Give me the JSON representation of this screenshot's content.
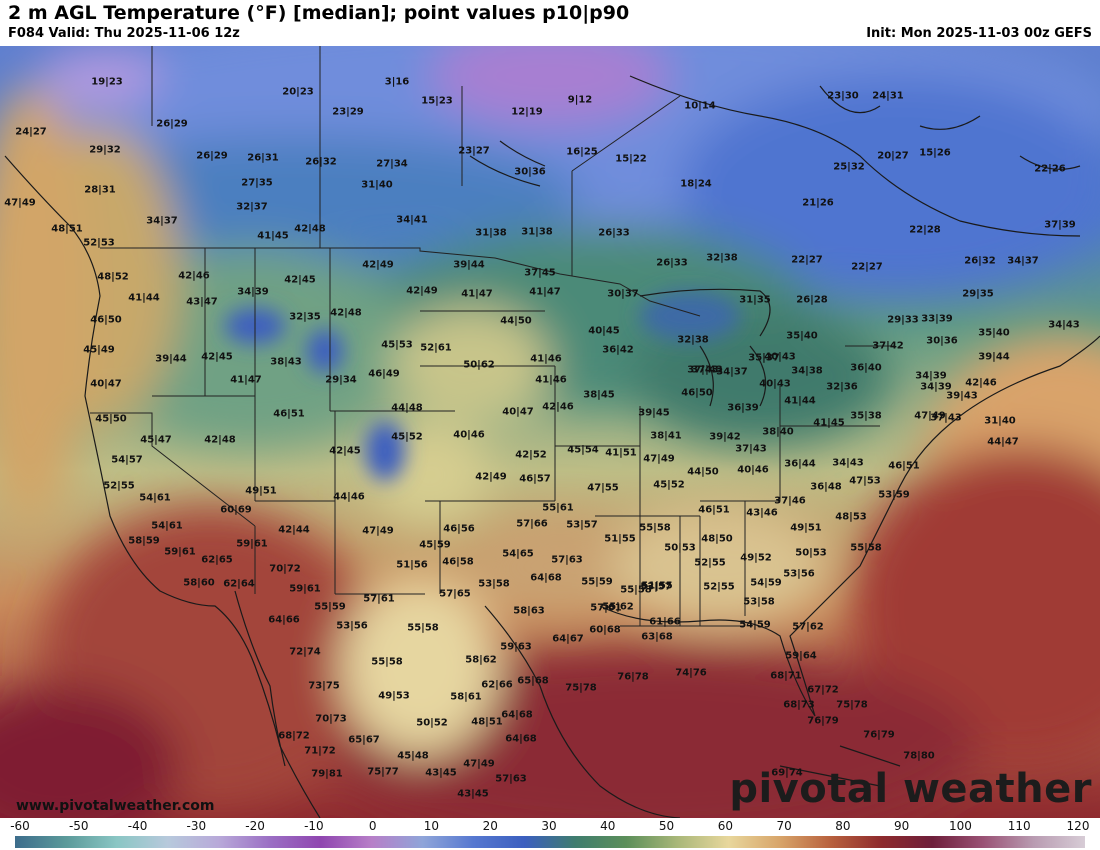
{
  "header": {
    "title": "2 m AGL Temperature (°F) [median]; point values p10|p90",
    "valid": "F084 Valid: Thu 2025-11-06 12z",
    "init": "Init: Mon 2025-11-03 00z GEFS"
  },
  "branding": {
    "website": "www.pivotalweather.com",
    "logo_text": "pivotal weather"
  },
  "colorbar": {
    "ticks": [
      "-60",
      "-50",
      "-40",
      "-30",
      "-20",
      "-10",
      "0",
      "10",
      "20",
      "30",
      "40",
      "50",
      "60",
      "70",
      "80",
      "90",
      "100",
      "110",
      "120"
    ],
    "stops": [
      "#3d6d8c",
      "#5b9a9a",
      "#8ac6c4",
      "#b7c9dc",
      "#b8a9d9",
      "#9b6fc4",
      "#8f46b0",
      "#b77fc8",
      "#8fa5d9",
      "#5678d0",
      "#3b5fbf",
      "#3f7d6e",
      "#5c8f5a",
      "#a9b779",
      "#e8d79c",
      "#d8a56a",
      "#b8613e",
      "#8e2b2d",
      "#6e1f3b",
      "#9a5275",
      "#b99cb2",
      "#d7ccd6"
    ]
  },
  "point_values": [
    {
      "label": "19|23"
    },
    {
      "label": "20|23"
    },
    {
      "label": "3|16"
    },
    {
      "label": "15|23"
    },
    {
      "label": "9|12"
    },
    {
      "label": "10|14"
    },
    {
      "label": "23|30"
    },
    {
      "label": "24|31"
    },
    {
      "label": "24|27"
    },
    {
      "label": "26|29"
    },
    {
      "label": "23|29"
    },
    {
      "label": "12|19"
    },
    {
      "label": "29|32"
    },
    {
      "label": "26|29"
    },
    {
      "label": "26|31"
    },
    {
      "label": "26|32"
    },
    {
      "label": "27|34"
    },
    {
      "label": "23|27"
    },
    {
      "label": "16|25"
    },
    {
      "label": "15|22"
    },
    {
      "label": "25|32"
    },
    {
      "label": "20|27"
    },
    {
      "label": "15|26"
    },
    {
      "label": "22|26"
    },
    {
      "label": "28|31"
    },
    {
      "label": "27|35"
    },
    {
      "label": "31|40"
    },
    {
      "label": "30|36"
    },
    {
      "label": "18|24"
    },
    {
      "label": "47|49"
    },
    {
      "label": "32|37"
    },
    {
      "label": "21|26"
    },
    {
      "label": "34|37"
    },
    {
      "label": "34|41"
    },
    {
      "label": "48|51"
    },
    {
      "label": "41|45"
    },
    {
      "label": "42|48"
    },
    {
      "label": "31|38"
    },
    {
      "label": "31|38"
    },
    {
      "label": "26|33"
    },
    {
      "label": "22|28"
    },
    {
      "label": "37|39"
    },
    {
      "label": "52|53"
    },
    {
      "label": "42|46"
    },
    {
      "label": "42|49"
    },
    {
      "label": "39|44"
    },
    {
      "label": "26|33"
    },
    {
      "label": "32|38"
    },
    {
      "label": "22|27"
    },
    {
      "label": "22|27"
    },
    {
      "label": "26|32"
    },
    {
      "label": "34|37"
    },
    {
      "label": "48|52"
    },
    {
      "label": "34|39"
    },
    {
      "label": "42|45"
    },
    {
      "label": "37|45"
    },
    {
      "label": "41|44"
    },
    {
      "label": "43|47"
    },
    {
      "label": "42|49"
    },
    {
      "label": "41|47"
    },
    {
      "label": "41|47"
    },
    {
      "label": "30|37"
    },
    {
      "label": "31|35"
    },
    {
      "label": "26|28"
    },
    {
      "label": "29|35"
    },
    {
      "label": "46|50"
    },
    {
      "label": "32|35"
    },
    {
      "label": "42|48"
    },
    {
      "label": "44|50"
    },
    {
      "label": "29|33"
    },
    {
      "label": "33|39"
    },
    {
      "label": "34|43"
    },
    {
      "label": "45|49"
    },
    {
      "label": "45|53"
    },
    {
      "label": "52|61"
    },
    {
      "label": "40|45"
    },
    {
      "label": "32|38"
    },
    {
      "label": "35|40"
    },
    {
      "label": "30|36"
    },
    {
      "label": "35|40"
    },
    {
      "label": "39|44"
    },
    {
      "label": "42|45"
    },
    {
      "label": "38|43"
    },
    {
      "label": "50|62"
    },
    {
      "label": "41|46"
    },
    {
      "label": "36|42"
    },
    {
      "label": "35|37"
    },
    {
      "label": "40|43"
    },
    {
      "label": "37|42"
    },
    {
      "label": "39|44"
    },
    {
      "label": "40|47"
    },
    {
      "label": "41|47"
    },
    {
      "label": "29|34"
    },
    {
      "label": "46|49"
    },
    {
      "label": "41|46"
    },
    {
      "label": "37|43"
    },
    {
      "label": "34|37"
    },
    {
      "label": "34|38"
    },
    {
      "label": "36|40"
    },
    {
      "label": "34|39"
    },
    {
      "label": "42|46"
    },
    {
      "label": "34|39"
    },
    {
      "label": "40|43"
    },
    {
      "label": "32|36"
    },
    {
      "label": "37|43"
    },
    {
      "label": "38|45"
    },
    {
      "label": "46|50"
    },
    {
      "label": "39|43"
    },
    {
      "label": "47|49"
    },
    {
      "label": "45|50"
    },
    {
      "label": "46|51"
    },
    {
      "label": "44|48"
    },
    {
      "label": "40|47"
    },
    {
      "label": "42|46"
    },
    {
      "label": "39|45"
    },
    {
      "label": "36|39"
    },
    {
      "label": "41|44"
    },
    {
      "label": "35|38"
    },
    {
      "label": "31|40"
    },
    {
      "label": "37|43"
    },
    {
      "label": "45|47"
    },
    {
      "label": "42|48"
    },
    {
      "label": "40|46"
    },
    {
      "label": "38|41"
    },
    {
      "label": "39|42"
    },
    {
      "label": "38|40"
    },
    {
      "label": "41|45"
    },
    {
      "label": "44|47"
    },
    {
      "label": "42|45"
    },
    {
      "label": "45|52"
    },
    {
      "label": "42|52"
    },
    {
      "label": "45|54"
    },
    {
      "label": "41|51"
    },
    {
      "label": "37|43"
    },
    {
      "label": "54|57"
    },
    {
      "label": "47|49"
    },
    {
      "label": "40|46"
    },
    {
      "label": "36|44"
    },
    {
      "label": "34|43"
    },
    {
      "label": "46|51"
    },
    {
      "label": "52|55"
    },
    {
      "label": "42|49"
    },
    {
      "label": "46|57"
    },
    {
      "label": "44|50"
    },
    {
      "label": "47|53"
    },
    {
      "label": "49|51"
    },
    {
      "label": "54|61"
    },
    {
      "label": "44|46"
    },
    {
      "label": "47|55"
    },
    {
      "label": "45|52"
    },
    {
      "label": "36|48"
    },
    {
      "label": "53|59"
    },
    {
      "label": "37|46"
    },
    {
      "label": "60|69"
    },
    {
      "label": "55|61"
    },
    {
      "label": "46|51"
    },
    {
      "label": "43|46"
    },
    {
      "label": "48|53"
    },
    {
      "label": "54|61"
    },
    {
      "label": "42|44"
    },
    {
      "label": "47|49"
    },
    {
      "label": "46|56"
    },
    {
      "label": "57|66"
    },
    {
      "label": "53|57"
    },
    {
      "label": "55|58"
    },
    {
      "label": "49|51"
    },
    {
      "label": "58|59"
    },
    {
      "label": "59|61"
    },
    {
      "label": "45|59"
    },
    {
      "label": "51|55"
    },
    {
      "label": "48|50"
    },
    {
      "label": "55|58"
    },
    {
      "label": "59|61"
    },
    {
      "label": "62|65"
    },
    {
      "label": "70|72"
    },
    {
      "label": "51|56"
    },
    {
      "label": "46|58"
    },
    {
      "label": "54|65"
    },
    {
      "label": "57|63"
    },
    {
      "label": "50|53"
    },
    {
      "label": "52|55"
    },
    {
      "label": "49|52"
    },
    {
      "label": "50|53"
    },
    {
      "label": "58|60"
    },
    {
      "label": "62|64"
    },
    {
      "label": "59|61"
    },
    {
      "label": "64|68"
    },
    {
      "label": "55|59"
    },
    {
      "label": "55|58"
    },
    {
      "label": "53|57"
    },
    {
      "label": "53|56"
    },
    {
      "label": "55|59"
    },
    {
      "label": "57|61"
    },
    {
      "label": "57|65"
    },
    {
      "label": "53|58"
    },
    {
      "label": "51|55"
    },
    {
      "label": "52|55"
    },
    {
      "label": "54|59"
    },
    {
      "label": "64|66"
    },
    {
      "label": "57|61"
    },
    {
      "label": "55|62"
    },
    {
      "label": "53|58"
    },
    {
      "label": "53|56"
    },
    {
      "label": "55|58"
    },
    {
      "label": "58|63"
    },
    {
      "label": "61|66"
    },
    {
      "label": "54|59"
    },
    {
      "label": "57|62"
    },
    {
      "label": "72|74"
    },
    {
      "label": "64|67"
    },
    {
      "label": "60|68"
    },
    {
      "label": "63|68"
    },
    {
      "label": "55|58"
    },
    {
      "label": "59|63"
    },
    {
      "label": "58|62"
    },
    {
      "label": "59|64"
    },
    {
      "label": "73|75"
    },
    {
      "label": "62|66"
    },
    {
      "label": "65|68"
    },
    {
      "label": "75|78"
    },
    {
      "label": "76|78"
    },
    {
      "label": "74|76"
    },
    {
      "label": "68|71"
    },
    {
      "label": "49|53"
    },
    {
      "label": "58|61"
    },
    {
      "label": "67|72"
    },
    {
      "label": "70|73"
    },
    {
      "label": "64|68"
    },
    {
      "label": "68|73"
    },
    {
      "label": "75|78"
    },
    {
      "label": "50|52"
    },
    {
      "label": "48|51"
    },
    {
      "label": "76|79"
    },
    {
      "label": "68|72"
    },
    {
      "label": "65|67"
    },
    {
      "label": "64|68"
    },
    {
      "label": "76|79"
    },
    {
      "label": "71|72"
    },
    {
      "label": "45|48"
    },
    {
      "label": "78|80"
    },
    {
      "label": "75|77"
    },
    {
      "label": "47|49"
    },
    {
      "label": "43|45"
    },
    {
      "label": "79|81"
    },
    {
      "label": "69|74"
    },
    {
      "label": "57|63"
    },
    {
      "label": "43|45"
    }
  ]
}
